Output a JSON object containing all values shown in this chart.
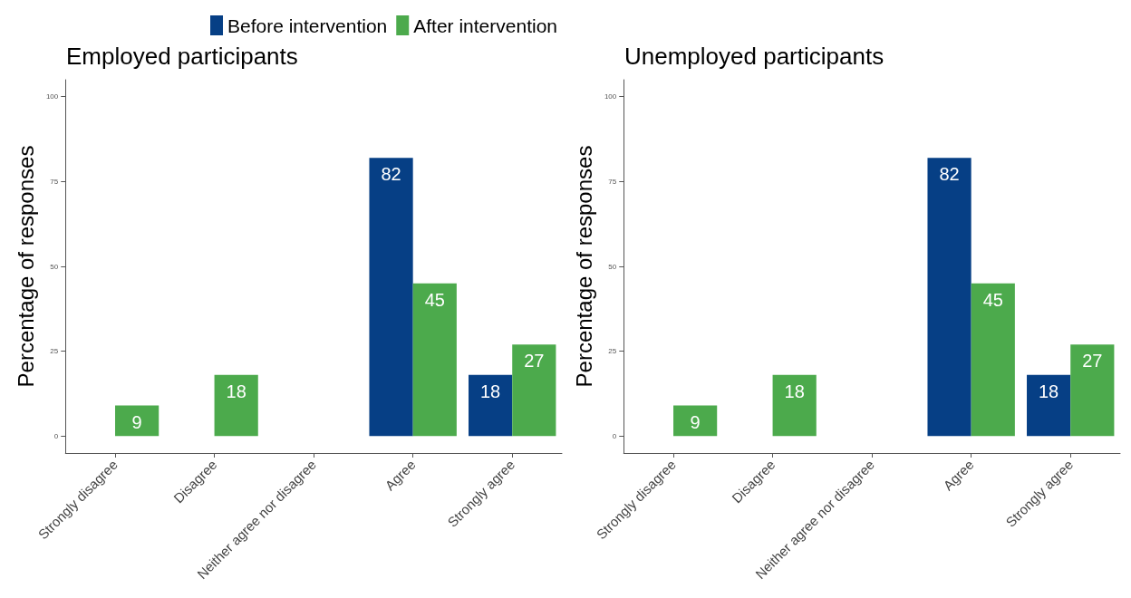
{
  "chart_data": [
    {
      "type": "bar",
      "title": "Employed participants",
      "ylabel": "Percentage of responses",
      "categories": [
        "Strongly disagree",
        "Disagree",
        "Neither agree nor disagree",
        "Agree",
        "Strongly agree"
      ],
      "series": [
        {
          "name": "Before intervention",
          "color": "#063f85",
          "values": [
            0,
            0,
            0,
            82,
            18
          ],
          "value_labels": [
            null,
            null,
            null,
            "82",
            "18"
          ]
        },
        {
          "name": "After intervention",
          "color": "#4caa4c",
          "values": [
            9,
            18,
            0,
            45,
            27
          ],
          "value_labels": [
            "9",
            "18",
            null,
            "45",
            "27"
          ]
        }
      ],
      "ylim": [
        -5,
        105
      ],
      "yticks": [
        0,
        25,
        50,
        75,
        100
      ],
      "grid": false,
      "legend": "top"
    },
    {
      "type": "bar",
      "title": "Unemployed participants",
      "ylabel": "Percentage of responses",
      "categories": [
        "Strongly disagree",
        "Disagree",
        "Neither agree nor disagree",
        "Agree",
        "Strongly agree"
      ],
      "series": [
        {
          "color": "#063f85",
          "values": [
            0,
            0,
            0,
            82,
            18
          ],
          "value_labels": [
            null,
            null,
            null,
            "82",
            "18"
          ]
        },
        {
          "color": "#4caa4c",
          "values": [
            9,
            18,
            0,
            45,
            27
          ],
          "value_labels": [
            "9",
            "18",
            null,
            "45",
            "27"
          ]
        }
      ],
      "ylim": [
        -5,
        105
      ],
      "yticks": [
        0,
        25,
        50,
        75,
        100
      ],
      "grid": false,
      "legend": false
    }
  ]
}
